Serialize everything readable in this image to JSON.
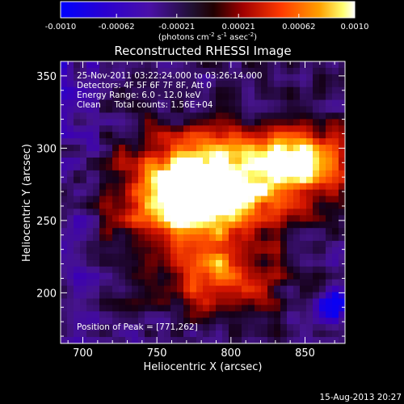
{
  "chart_data": {
    "type": "heatmap",
    "title": "Reconstructed RHESSI Image",
    "xlabel": "Heliocentric X (arcsec)",
    "ylabel": "Heliocentric Y (arcsec)",
    "xlim": [
      685,
      877
    ],
    "ylim": [
      165,
      360
    ],
    "xticks": [
      700,
      750,
      800,
      850
    ],
    "yticks": [
      200,
      250,
      300,
      350
    ],
    "colorbar": {
      "range": [
        -0.001,
        0.001
      ],
      "ticks": [
        "-0.0010",
        "-0.00062",
        "-0.00021",
        "0.00021",
        "0.00062",
        "0.0010"
      ],
      "label_main": "(photons cm",
      "label_sup1": "-2",
      "label_mid": " s",
      "label_sup2": "-1",
      "label_tail": " asec",
      "label_sup3": "-2",
      "label_end": ")",
      "colormap": [
        "#0000ff",
        "#3000c0",
        "#5a1a9a",
        "#000000",
        "#a00000",
        "#ff3000",
        "#ff9000",
        "#ffff80",
        "#ffffff"
      ]
    },
    "annotations": [
      "25-Nov-2011 03:22:24.000 to 03:26:14.000",
      "Detectors: 4F 5F 6F 7F 8F, Att 0",
      "Energy Range: 6.0 - 12.0 keV",
      "Clean     Total counts: 1.56E+04"
    ],
    "peak_label": "Position of Peak = [771,262]",
    "peak": [
      771,
      262
    ],
    "grid": false
  },
  "footer": {
    "timestamp": "15-Aug-2013 20:27"
  }
}
